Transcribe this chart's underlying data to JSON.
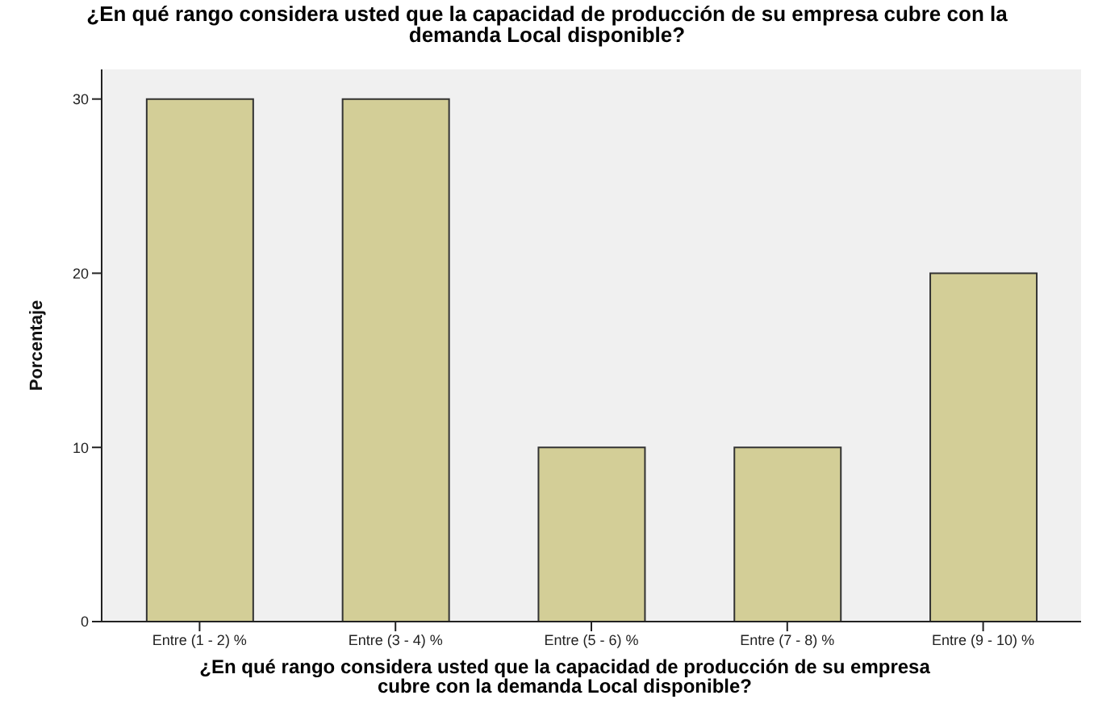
{
  "chart_data": {
    "type": "bar",
    "title": "¿En qué rango considera usted que la capacidad de producción de su empresa cubre con la demanda Local disponible?",
    "xlabel": "¿En qué rango considera usted que la capacidad de producción de su empresa cubre con la demanda Local disponible?",
    "ylabel": "Porcentaje",
    "categories": [
      "Entre (1 - 2) %",
      "Entre (3 - 4) %",
      "Entre (5 - 6) %",
      "Entre (7 - 8) %",
      "Entre (9 - 10) %"
    ],
    "values": [
      30,
      30,
      10,
      10,
      20
    ],
    "color": "#d3ce97",
    "ylim": [
      0,
      31.7
    ],
    "yticks": [
      0,
      10,
      20,
      30
    ],
    "grid": false,
    "legend": false
  }
}
